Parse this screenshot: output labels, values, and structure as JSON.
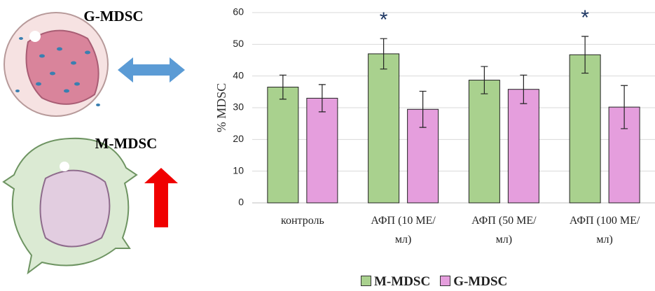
{
  "illustration": {
    "labels": [
      "G-MDSC",
      "M-MDSC"
    ]
  },
  "chart_data": {
    "type": "bar",
    "y_label": "% MDSC",
    "categories": [
      "контроль",
      "АФП (10 МЕ/мл)",
      "АФП (50 МЕ/мл)",
      "АФП (100 МЕ/мл)"
    ],
    "series": [
      {
        "name": "M-MDSC",
        "color": "#a9d18e",
        "values": [
          36.5,
          47,
          38.7,
          46.7
        ],
        "errors": [
          3.8,
          4.8,
          4.3,
          5.8
        ],
        "annotations": [
          null,
          "*",
          null,
          "*"
        ]
      },
      {
        "name": "G-MDSC",
        "color": "#e59edd",
        "values": [
          33,
          29.5,
          35.8,
          30.2
        ],
        "errors": [
          4.3,
          5.7,
          4.5,
          6.8
        ]
      }
    ],
    "ylim": [
      0,
      60
    ],
    "yticks": [
      0,
      10,
      20,
      30,
      40,
      50,
      60
    ],
    "grid": true
  }
}
